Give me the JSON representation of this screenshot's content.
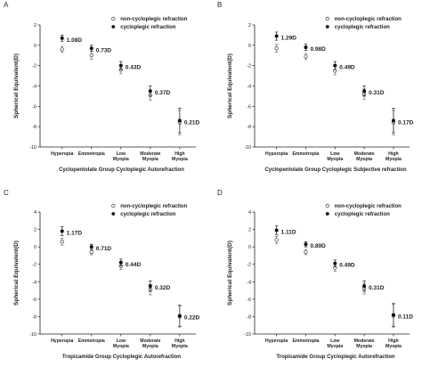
{
  "chart_data": [
    {
      "type": "scatter",
      "panel": "A",
      "xlabel": "Cyclopentolate Group  Cycloplegic Autorefraction",
      "ylabel": "Spherical Equivalent(D)",
      "ylim": [
        -10,
        2
      ],
      "yticks": [
        2,
        0,
        -2,
        -4,
        -6,
        -8,
        -10
      ],
      "categories": [
        "Hyperopia",
        "Emmetropia",
        "Low Myopia",
        "Moderate Myopia",
        "High Myopia"
      ],
      "legend": [
        "non-cycloplegic refraction",
        "cycloplegic refraction"
      ],
      "series": [
        {
          "name": "non-cycloplegic refraction",
          "marker": "open-circle",
          "values": [
            -0.4,
            -1.0,
            -2.4,
            -4.9,
            -7.6
          ],
          "err": [
            0.3,
            0.4,
            0.4,
            0.5,
            1.2
          ]
        },
        {
          "name": "cycloplegic refraction",
          "marker": "filled-circle",
          "values": [
            0.7,
            -0.3,
            -2.0,
            -4.5,
            -7.4
          ],
          "err": [
            0.3,
            0.3,
            0.4,
            0.5,
            1.2
          ]
        }
      ],
      "diff_labels": [
        "1.08D",
        "0.73D",
        "0.43D",
        "0.37D",
        "0.21D"
      ]
    },
    {
      "type": "scatter",
      "panel": "B",
      "xlabel": "Cyclopentolate Group  Cycloplegic Subjective refraction",
      "ylabel": "Spherical Equivalent(D)",
      "ylim": [
        -10,
        2
      ],
      "yticks": [
        2,
        0,
        -2,
        -4,
        -6,
        -8,
        -10
      ],
      "categories": [
        "Hyperopia",
        "Emmetropia",
        "Low Myopia",
        "Moderate Myopia",
        "High Myopia"
      ],
      "legend": [
        "non-cycloplegic refraction",
        "cycloplegic refraction"
      ],
      "series": [
        {
          "name": "non-cycloplegic refraction",
          "marker": "open-circle",
          "values": [
            -0.3,
            -1.1,
            -2.5,
            -4.8,
            -7.6
          ],
          "err": [
            0.4,
            0.3,
            0.4,
            0.5,
            1.2
          ]
        },
        {
          "name": "cycloplegic refraction",
          "marker": "filled-circle",
          "values": [
            0.9,
            -0.2,
            -2.0,
            -4.5,
            -7.4
          ],
          "err": [
            0.4,
            0.3,
            0.4,
            0.5,
            1.2
          ]
        }
      ],
      "diff_labels": [
        "1.29D",
        "0.98D",
        "0.49D",
        "0.31D",
        "0.17D"
      ]
    },
    {
      "type": "scatter",
      "panel": "C",
      "xlabel": "Tropicamide Group  Cycloplegic Autorefraction",
      "ylabel": "Spherical Equivalent(D)",
      "ylim": [
        -10,
        4
      ],
      "yticks": [
        4,
        2,
        0,
        -2,
        -4,
        -6,
        -8,
        -10
      ],
      "categories": [
        "Hyperopia",
        "Emmetropia",
        "Low Myopia",
        "Moderate Myopia",
        "High Myopia"
      ],
      "legend": [
        "non-cycloplegic refraction",
        "cycloplegic refraction"
      ],
      "series": [
        {
          "name": "non-cycloplegic refraction",
          "marker": "open-circle",
          "values": [
            0.6,
            -0.6,
            -2.2,
            -4.9,
            -8.0
          ],
          "err": [
            0.4,
            0.3,
            0.4,
            0.6,
            1.2
          ]
        },
        {
          "name": "cycloplegic refraction",
          "marker": "filled-circle",
          "values": [
            1.8,
            0.0,
            -1.8,
            -4.5,
            -7.9
          ],
          "err": [
            0.5,
            0.3,
            0.4,
            0.6,
            1.2
          ]
        }
      ],
      "diff_labels": [
        "1.17D",
        "0.71D",
        "0.44D",
        "0.32D",
        "0.22D"
      ]
    },
    {
      "type": "scatter",
      "panel": "D",
      "xlabel": "Tropicamide Group  Cycloplegic Autorefraction",
      "ylabel": "Spherical Equivalent(D)",
      "ylim": [
        -10,
        4
      ],
      "yticks": [
        4,
        2,
        0,
        -2,
        -4,
        -6,
        -8,
        -10
      ],
      "categories": [
        "Hyperopia",
        "Emmetropia",
        "Low Myopia",
        "Moderate Myopia",
        "High Myopia"
      ],
      "legend": [
        "non-cycloplegic refraction",
        "cycloplegic refraction"
      ],
      "series": [
        {
          "name": "non-cycloplegic refraction",
          "marker": "open-circle",
          "values": [
            0.8,
            -0.6,
            -2.4,
            -4.8,
            -7.9
          ],
          "err": [
            0.4,
            0.3,
            0.4,
            0.6,
            1.3
          ]
        },
        {
          "name": "cycloplegic refraction",
          "marker": "filled-circle",
          "values": [
            1.9,
            0.3,
            -1.9,
            -4.5,
            -7.8
          ],
          "err": [
            0.5,
            0.3,
            0.4,
            0.6,
            1.3
          ]
        }
      ],
      "diff_labels": [
        "1.11D",
        "0.89D",
        "0.49D",
        "0.31D",
        "0.11D"
      ]
    }
  ]
}
